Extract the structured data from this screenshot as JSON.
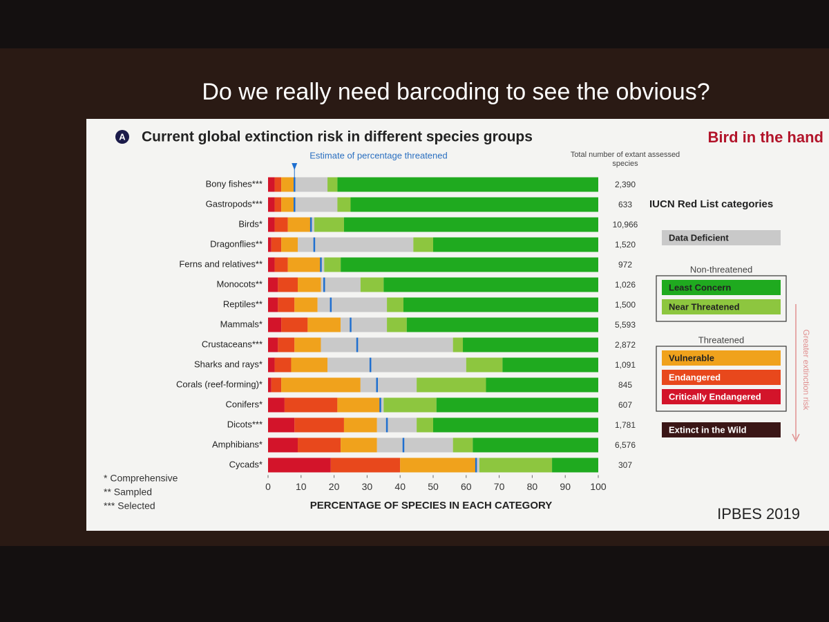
{
  "slide_title": "Do we really need barcoding to see the obvious?",
  "corner_note": "Bird in the hand",
  "source": "IPBES 2019",
  "chart_data": {
    "type": "stacked_barh",
    "panel": "A",
    "title": "Current global extinction risk in different species groups",
    "categories": [
      "Bony fishes***",
      "Gastropods***",
      "Birds*",
      "Dragonflies**",
      "Ferns and relatives**",
      "Monocots**",
      "Reptiles**",
      "Mammals*",
      "Crustaceans***",
      "Sharks and rays*",
      "Corals (reef-forming)*",
      "Conifers*",
      "Dicots***",
      "Amphibians*",
      "Cycads*"
    ],
    "series": [
      {
        "name": "Extinct in the Wild",
        "color": "#3a1616",
        "values": [
          0,
          0,
          0,
          0,
          0,
          0,
          0,
          0,
          0,
          0,
          0,
          0,
          0,
          0,
          0
        ]
      },
      {
        "name": "Critically Endangered",
        "color": "#d3142a",
        "values": [
          2,
          2,
          2,
          1,
          2,
          3,
          3,
          4,
          3,
          2,
          1,
          5,
          8,
          9,
          19
        ]
      },
      {
        "name": "Endangered",
        "color": "#e8481c",
        "values": [
          2,
          2,
          4,
          3,
          4,
          6,
          5,
          8,
          5,
          5,
          3,
          16,
          15,
          13,
          21
        ]
      },
      {
        "name": "Vulnerable",
        "color": "#f0a21c",
        "values": [
          4,
          4,
          7,
          5,
          10,
          7,
          7,
          10,
          8,
          11,
          24,
          13,
          10,
          11,
          23
        ]
      },
      {
        "name": "Data Deficient",
        "color": "#c9c9c9",
        "values": [
          10,
          13,
          1,
          35,
          1,
          12,
          21,
          14,
          40,
          42,
          17,
          1,
          12,
          23,
          1
        ]
      },
      {
        "name": "Near Threatened",
        "color": "#8dc63f",
        "values": [
          3,
          4,
          9,
          6,
          5,
          7,
          5,
          6,
          3,
          11,
          21,
          16,
          5,
          6,
          22
        ]
      },
      {
        "name": "Least Concern",
        "color": "#1faa1f",
        "values": [
          79,
          75,
          77,
          50,
          78,
          65,
          59,
          58,
          41,
          29,
          34,
          49,
          50,
          38,
          14
        ]
      }
    ],
    "threatened_estimate": {
      "label": "Estimate of percentage threatened",
      "color": "#1e6fd0",
      "values": [
        8,
        8,
        13,
        14,
        16,
        17,
        19,
        25,
        27,
        31,
        33,
        34,
        36,
        41,
        63
      ]
    },
    "totals": {
      "label": "Total number of extant assessed species",
      "values": [
        2390,
        633,
        10966,
        1520,
        972,
        1026,
        1500,
        5593,
        2872,
        1091,
        845,
        607,
        1781,
        6576,
        307
      ],
      "value_labels": [
        "2,390",
        "633",
        "10,966",
        "1,520",
        "972",
        "1,026",
        "1,500",
        "5,593",
        "2,872",
        "1,091",
        "845",
        "607",
        "1,781",
        "6,576",
        "307"
      ]
    },
    "xlim": [
      0,
      100
    ],
    "xticks": [
      0,
      10,
      20,
      30,
      40,
      50,
      60,
      70,
      80,
      90,
      100
    ],
    "xlabel": "PERCENTAGE OF SPECIES IN EACH CATEGORY",
    "legend": {
      "title": "IUCN Red List categories",
      "risk_label": "Greater extinction risk",
      "groups": [
        {
          "series": [
            4
          ]
        },
        {
          "label": "Non-threatened",
          "series": [
            6,
            5
          ]
        },
        {
          "label": "Threatened",
          "series": [
            3,
            2,
            1
          ]
        },
        {
          "series": [
            0
          ]
        }
      ]
    },
    "footnotes": [
      "* Comprehensive",
      "** Sampled",
      "*** Selected"
    ]
  }
}
